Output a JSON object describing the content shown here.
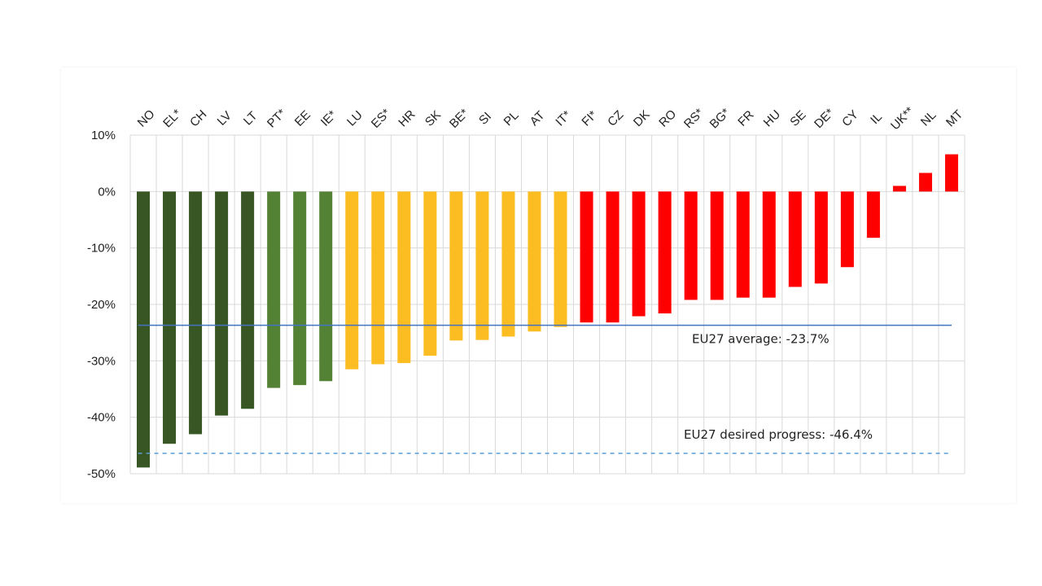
{
  "chart_data": {
    "type": "bar",
    "title": "",
    "xlabel": "",
    "ylabel": "",
    "ylim": [
      -50,
      10
    ],
    "yticks": [
      "10%",
      "0%",
      "-10%",
      "-20%",
      "-30%",
      "-40%",
      "-50%"
    ],
    "ytick_values": [
      10,
      0,
      -10,
      -20,
      -30,
      -40,
      -50
    ],
    "grid": true,
    "categories": [
      "NO",
      "EL*",
      "CH",
      "LV",
      "LT",
      "PT*",
      "EE",
      "IE*",
      "LU",
      "ES*",
      "HR",
      "SK",
      "BE*",
      "SI",
      "PL",
      "AT",
      "IT*",
      "FI*",
      "CZ",
      "DK",
      "RO",
      "RS*",
      "BG*",
      "FR",
      "HU",
      "SE",
      "DE*",
      "CY",
      "IL",
      "UK**",
      "NL",
      "MT"
    ],
    "values": [
      -48.9,
      -44.7,
      -43.0,
      -39.7,
      -38.5,
      -34.8,
      -34.3,
      -33.6,
      -31.5,
      -30.6,
      -30.4,
      -29.1,
      -26.4,
      -26.3,
      -25.7,
      -24.8,
      -24.0,
      -23.2,
      -23.2,
      -22.1,
      -21.6,
      -19.2,
      -19.2,
      -18.8,
      -18.8,
      -16.9,
      -16.3,
      -13.4,
      -8.2,
      1.0,
      3.3,
      6.6
    ],
    "groups": [
      "dark",
      "dark",
      "dark",
      "dark",
      "dark",
      "light",
      "light",
      "light",
      "yellow",
      "yellow",
      "yellow",
      "yellow",
      "yellow",
      "yellow",
      "yellow",
      "yellow",
      "yellow",
      "red",
      "red",
      "red",
      "red",
      "red",
      "red",
      "red",
      "red",
      "red",
      "red",
      "red",
      "red",
      "red",
      "red",
      "red"
    ],
    "colors": {
      "dark": "#375623",
      "light": "#548235",
      "yellow": "#FBBD22",
      "red": "#FF0000",
      "average": "#4472C4",
      "desired": "#5B9BD5",
      "grid": "#D9D9D9"
    },
    "reference_lines": [
      {
        "name": "average",
        "value": -23.7,
        "label": "EU27 average: -23.7%",
        "style": "solid"
      },
      {
        "name": "desired",
        "value": -46.4,
        "label": "EU27 desired progress: -46.4%",
        "style": "dashed"
      }
    ]
  }
}
